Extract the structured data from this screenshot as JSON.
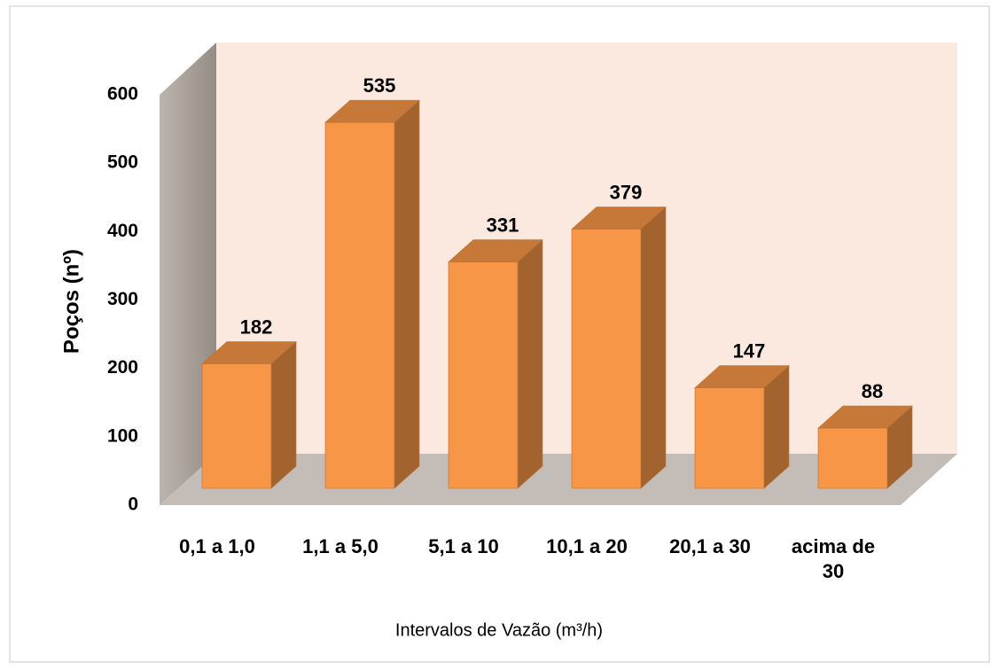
{
  "chart_data": {
    "type": "bar3d",
    "categories": [
      "0,1 a 1,0",
      "1,1 a 5,0",
      "5,1 a 10",
      "10,1 a 20",
      "20,1 a 30",
      "acima de 30"
    ],
    "values": [
      182,
      535,
      331,
      379,
      147,
      88
    ],
    "color": "#f79646",
    "ylim": [
      0,
      600
    ],
    "yticks": [
      0,
      100,
      200,
      300,
      400,
      500,
      600
    ],
    "y_label": "Poços (nº)",
    "x_label": "Intervalos de Vazão (m³/h)"
  }
}
